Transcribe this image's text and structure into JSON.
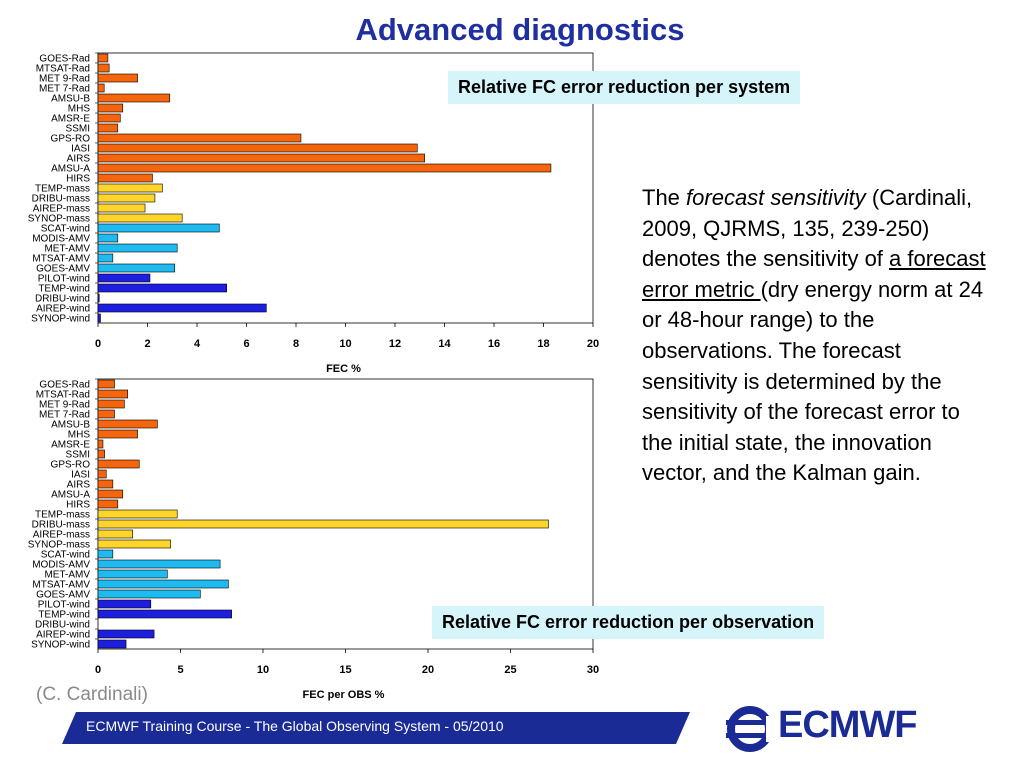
{
  "title": "Advanced diagnostics",
  "callouts": {
    "system": "Relative FC error reduction per system",
    "observation": "Relative FC error reduction per observation"
  },
  "description": {
    "p1": "The ",
    "em": "forecast sensitivity",
    "p2": " (Cardinali, 2009, QJRMS, 135, 239-250) denotes the sensitivity of ",
    "underline": "a forecast error metric ",
    "p3": "(dry energy norm at 24 or 48-hour range) to the observations. The forecast sensitivity is determined by the sensitivity of the forecast error to the initial state, the innovation vector, and the Kalman gain."
  },
  "credit": "(C. Cardinali)",
  "footer": {
    "text": "ECMWF Training Course - The Global Observing System - 05/2010",
    "logo": "ECMWF",
    "bar_color": "#1a2b95"
  },
  "colors": {
    "orange": "#f4650d",
    "yellow": "#fdd52a",
    "cyan": "#1fbbf0",
    "blue": "#1d1ee0"
  },
  "chart_data": [
    {
      "type": "bar",
      "orientation": "horizontal",
      "xlabel": "FEC %",
      "xlim": [
        0,
        20
      ],
      "xticks": [
        0,
        2,
        4,
        6,
        8,
        10,
        12,
        14,
        16,
        18,
        20
      ],
      "categories": [
        "GOES-Rad",
        "MTSAT-Rad",
        "MET 9-Rad",
        "MET 7-Rad",
        "AMSU-B",
        "MHS",
        "AMSR-E",
        "SSMI",
        "GPS-RO",
        "IASI",
        "AIRS",
        "AMSU-A",
        "HIRS",
        "TEMP-mass",
        "DRIBU-mass",
        "AIREP-mass",
        "SYNOP-mass",
        "SCAT-wind",
        "MODIS-AMV",
        "MET-AMV",
        "MTSAT-AMV",
        "GOES-AMV",
        "PILOT-wind",
        "TEMP-wind",
        "DRIBU-wind",
        "AIREP-wind",
        "SYNOP-wind"
      ],
      "groups": [
        "orange",
        "orange",
        "orange",
        "orange",
        "orange",
        "orange",
        "orange",
        "orange",
        "orange",
        "orange",
        "orange",
        "orange",
        "orange",
        "yellow",
        "yellow",
        "yellow",
        "yellow",
        "cyan",
        "cyan",
        "cyan",
        "cyan",
        "cyan",
        "blue",
        "blue",
        "blue",
        "blue",
        "blue"
      ],
      "values": [
        0.4,
        0.45,
        1.6,
        0.25,
        2.9,
        1.0,
        0.9,
        0.8,
        8.2,
        12.9,
        13.2,
        18.3,
        2.2,
        2.6,
        2.3,
        1.9,
        3.4,
        4.9,
        0.8,
        3.2,
        0.6,
        3.1,
        2.1,
        5.2,
        0.05,
        6.8,
        0.1
      ]
    },
    {
      "type": "bar",
      "orientation": "horizontal",
      "xlabel": "FEC per OBS %",
      "xlim": [
        0,
        30
      ],
      "xticks": [
        0,
        5,
        10,
        15,
        20,
        25,
        30
      ],
      "categories": [
        "GOES-Rad",
        "MTSAT-Rad",
        "MET 9-Rad",
        "MET 7-Rad",
        "AMSU-B",
        "MHS",
        "AMSR-E",
        "SSMI",
        "GPS-RO",
        "IASI",
        "AIRS",
        "AMSU-A",
        "HIRS",
        "TEMP-mass",
        "DRIBU-mass",
        "AIREP-mass",
        "SYNOP-mass",
        "SCAT-wind",
        "MODIS-AMV",
        "MET-AMV",
        "MTSAT-AMV",
        "GOES-AMV",
        "PILOT-wind",
        "TEMP-wind",
        "DRIBU-wind",
        "AIREP-wind",
        "SYNOP-wind"
      ],
      "groups": [
        "orange",
        "orange",
        "orange",
        "orange",
        "orange",
        "orange",
        "orange",
        "orange",
        "orange",
        "orange",
        "orange",
        "orange",
        "orange",
        "yellow",
        "yellow",
        "yellow",
        "yellow",
        "cyan",
        "cyan",
        "cyan",
        "cyan",
        "cyan",
        "blue",
        "blue",
        "blue",
        "blue",
        "blue"
      ],
      "values": [
        1.0,
        1.8,
        1.6,
        1.0,
        3.6,
        2.4,
        0.3,
        0.4,
        2.5,
        0.5,
        0.9,
        1.5,
        1.2,
        4.8,
        27.3,
        2.1,
        4.4,
        0.9,
        7.4,
        4.2,
        7.9,
        6.2,
        3.2,
        8.1,
        0.0,
        3.4,
        1.7
      ]
    }
  ]
}
